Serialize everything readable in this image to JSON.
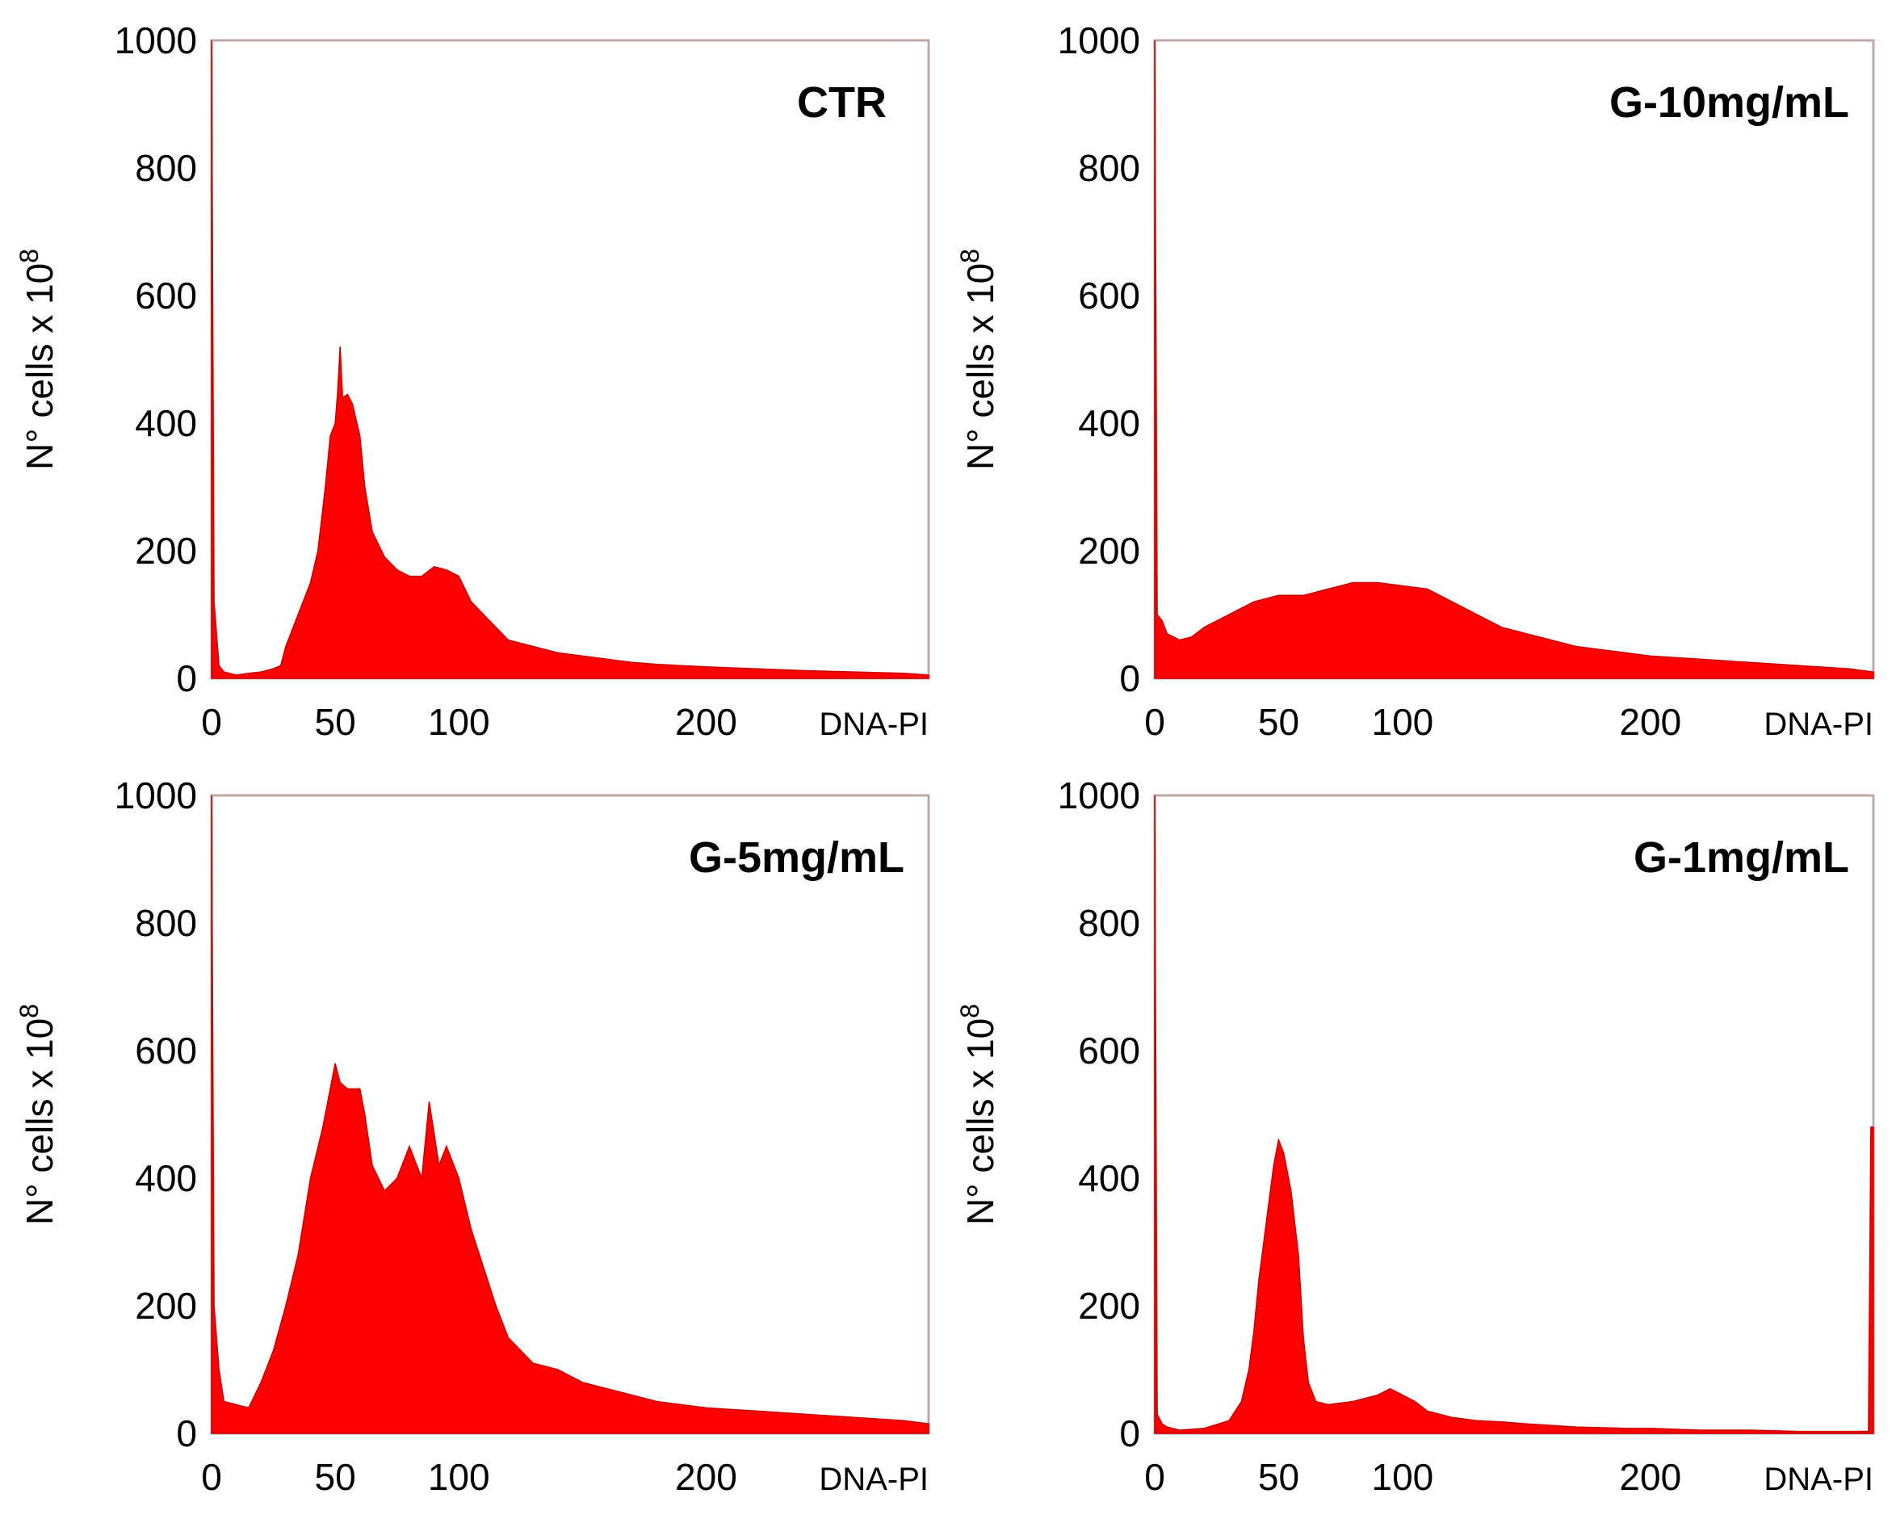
{
  "figure": {
    "description_free": true
  },
  "chart_data": [
    {
      "type": "area",
      "title": "CTR",
      "xlabel": "DNA-PI",
      "ylabel": "N° cells x 10",
      "ylabel_superscript": "8",
      "xticks": [
        0,
        50,
        100,
        200
      ],
      "xtick_labels": [
        "0",
        "50",
        "100",
        "200"
      ],
      "yticks": [
        0,
        200,
        400,
        600,
        800,
        1000
      ],
      "ytick_labels": [
        "0",
        "200",
        "400",
        "600",
        "800",
        "1000"
      ],
      "xlim": [
        0,
        290
      ],
      "ylim": [
        0,
        1000
      ],
      "color": "#ff0000",
      "edge_color": "#cc0000",
      "series": [
        {
          "name": "CTR",
          "x": [
            0,
            1,
            3,
            5,
            10,
            15,
            20,
            25,
            28,
            30,
            35,
            40,
            43,
            46,
            48,
            50,
            51,
            52,
            53,
            55,
            57,
            60,
            62,
            65,
            70,
            75,
            80,
            85,
            90,
            95,
            100,
            105,
            110,
            115,
            120,
            130,
            140,
            150,
            160,
            170,
            180,
            190,
            200,
            220,
            240,
            260,
            280,
            290
          ],
          "values": [
            1000,
            120,
            20,
            10,
            5,
            8,
            10,
            15,
            20,
            50,
            100,
            150,
            200,
            300,
            380,
            400,
            450,
            520,
            440,
            445,
            430,
            380,
            300,
            230,
            190,
            170,
            160,
            160,
            175,
            170,
            160,
            120,
            100,
            80,
            60,
            50,
            40,
            35,
            30,
            25,
            22,
            20,
            18,
            15,
            12,
            10,
            8,
            5
          ]
        }
      ]
    },
    {
      "type": "area",
      "title": "G-10mg/mL",
      "xlabel": "DNA-PI",
      "ylabel": "N° cells x 10",
      "ylabel_superscript": "8",
      "xticks": [
        0,
        50,
        100,
        200
      ],
      "xtick_labels": [
        "0",
        "50",
        "100",
        "200"
      ],
      "yticks": [
        0,
        200,
        400,
        600,
        800,
        1000
      ],
      "ytick_labels": [
        "0",
        "200",
        "400",
        "600",
        "800",
        "1000"
      ],
      "xlim": [
        0,
        290
      ],
      "ylim": [
        0,
        1000
      ],
      "color": "#ff0000",
      "edge_color": "#cc0000",
      "series": [
        {
          "name": "G-10mg/mL",
          "x": [
            0,
            1,
            3,
            5,
            10,
            15,
            20,
            30,
            40,
            50,
            60,
            70,
            80,
            90,
            100,
            110,
            120,
            130,
            140,
            150,
            160,
            170,
            180,
            190,
            200,
            220,
            240,
            260,
            280,
            290
          ],
          "values": [
            1000,
            100,
            90,
            70,
            60,
            65,
            80,
            100,
            120,
            130,
            130,
            140,
            150,
            150,
            145,
            140,
            120,
            100,
            80,
            70,
            60,
            50,
            45,
            40,
            35,
            30,
            25,
            20,
            15,
            10
          ]
        }
      ]
    },
    {
      "type": "area",
      "title": "G-5mg/mL",
      "xlabel": "DNA-PI",
      "ylabel": "N° cells x 10",
      "ylabel_superscript": "8",
      "xticks": [
        0,
        50,
        100,
        200
      ],
      "xtick_labels": [
        "0",
        "50",
        "100",
        "200"
      ],
      "yticks": [
        0,
        200,
        400,
        600,
        800,
        1000
      ],
      "ytick_labels": [
        "0",
        "200",
        "400",
        "600",
        "800",
        "1000"
      ],
      "xlim": [
        0,
        290
      ],
      "ylim": [
        0,
        1000
      ],
      "color": "#ff0000",
      "edge_color": "#cc0000",
      "series": [
        {
          "name": "G-5mg/mL",
          "x": [
            0,
            1,
            3,
            5,
            10,
            15,
            20,
            25,
            30,
            35,
            40,
            45,
            50,
            52,
            55,
            60,
            62,
            65,
            70,
            75,
            80,
            85,
            88,
            90,
            92,
            95,
            100,
            105,
            110,
            115,
            120,
            130,
            140,
            150,
            160,
            170,
            180,
            190,
            200,
            220,
            240,
            260,
            280,
            290
          ],
          "values": [
            1000,
            200,
            100,
            50,
            45,
            40,
            80,
            130,
            200,
            280,
            400,
            480,
            580,
            550,
            540,
            540,
            500,
            420,
            380,
            400,
            450,
            400,
            520,
            470,
            420,
            450,
            400,
            320,
            260,
            200,
            150,
            110,
            100,
            80,
            70,
            60,
            50,
            45,
            40,
            35,
            30,
            25,
            20,
            15
          ]
        }
      ]
    },
    {
      "type": "area",
      "title": "G-1mg/mL",
      "xlabel": "DNA-PI",
      "ylabel": "N° cells x 10",
      "ylabel_superscript": "8",
      "xticks": [
        0,
        50,
        100,
        200
      ],
      "xtick_labels": [
        "0",
        "50",
        "100",
        "200"
      ],
      "yticks": [
        0,
        200,
        400,
        600,
        800,
        1000
      ],
      "ytick_labels": [
        "0",
        "200",
        "400",
        "600",
        "800",
        "1000"
      ],
      "xlim": [
        0,
        290
      ],
      "ylim": [
        0,
        1000
      ],
      "color": "#ff0000",
      "edge_color": "#cc0000",
      "series": [
        {
          "name": "G-1mg/mL",
          "x": [
            0,
            1,
            3,
            5,
            10,
            20,
            30,
            35,
            38,
            40,
            42,
            45,
            48,
            50,
            52,
            55,
            58,
            60,
            62,
            65,
            70,
            80,
            90,
            95,
            100,
            105,
            110,
            120,
            130,
            140,
            150,
            170,
            190,
            200,
            220,
            240,
            260,
            280,
            288,
            289,
            290
          ],
          "values": [
            1000,
            30,
            15,
            10,
            5,
            8,
            20,
            50,
            100,
            160,
            240,
            330,
            420,
            460,
            440,
            380,
            280,
            150,
            80,
            50,
            45,
            50,
            60,
            70,
            60,
            50,
            35,
            25,
            20,
            18,
            15,
            10,
            8,
            8,
            5,
            5,
            3,
            3,
            3,
            480,
            480
          ]
        }
      ]
    }
  ]
}
